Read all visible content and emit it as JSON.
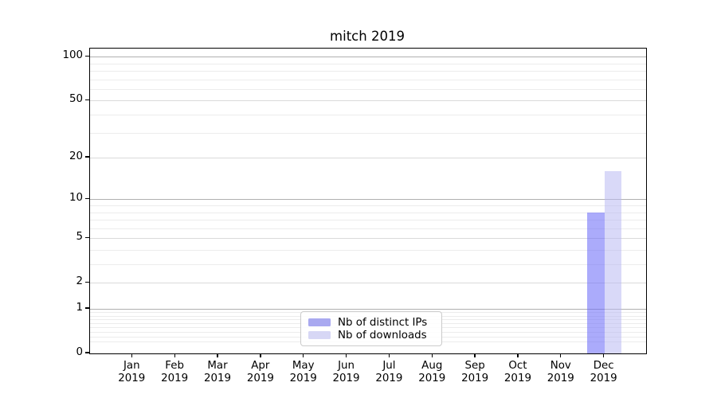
{
  "title": "mitch 2019",
  "chart_data": {
    "type": "bar",
    "title": "mitch 2019",
    "categories": [
      "Jan",
      "Feb",
      "Mar",
      "Apr",
      "May",
      "Jun",
      "Jul",
      "Aug",
      "Sep",
      "Oct",
      "Nov",
      "Dec"
    ],
    "year_label": "2019",
    "series": [
      {
        "name": "Nb of distinct IPs",
        "swatch_color": "#a9a9f0",
        "fill_color": "rgba(110,110,248,0.58)",
        "values": [
          0,
          0,
          0,
          0,
          0,
          0,
          0,
          0,
          0,
          0,
          0,
          8
        ]
      },
      {
        "name": "Nb of downloads",
        "swatch_color": "#d7d7f5",
        "fill_color": "rgba(185,185,242,0.55)",
        "values": [
          0,
          0,
          0,
          0,
          0,
          0,
          0,
          0,
          0,
          0,
          0,
          16
        ]
      }
    ],
    "xlabel": "",
    "ylabel": "",
    "yscale": "log1p",
    "yticks": [
      0,
      1,
      2,
      5,
      10,
      20,
      50,
      100
    ],
    "ylim": [
      0,
      113.6
    ],
    "grid": {
      "major_values": [
        1,
        10,
        100
      ],
      "labeled_minor_values": [
        2,
        5,
        20,
        50
      ],
      "minor_values": [
        0.2,
        0.3,
        0.4,
        0.5,
        0.6,
        0.7,
        0.8,
        0.9,
        3,
        4,
        6,
        7,
        8,
        9,
        30,
        40,
        60,
        70,
        80,
        90
      ],
      "major_color": "#b0b0b0",
      "labeled_minor_color": "#dadada",
      "minor_color": "#ececec"
    },
    "legend_position": "lower center",
    "legend": [
      "Nb of distinct IPs",
      "Nb of downloads"
    ]
  }
}
